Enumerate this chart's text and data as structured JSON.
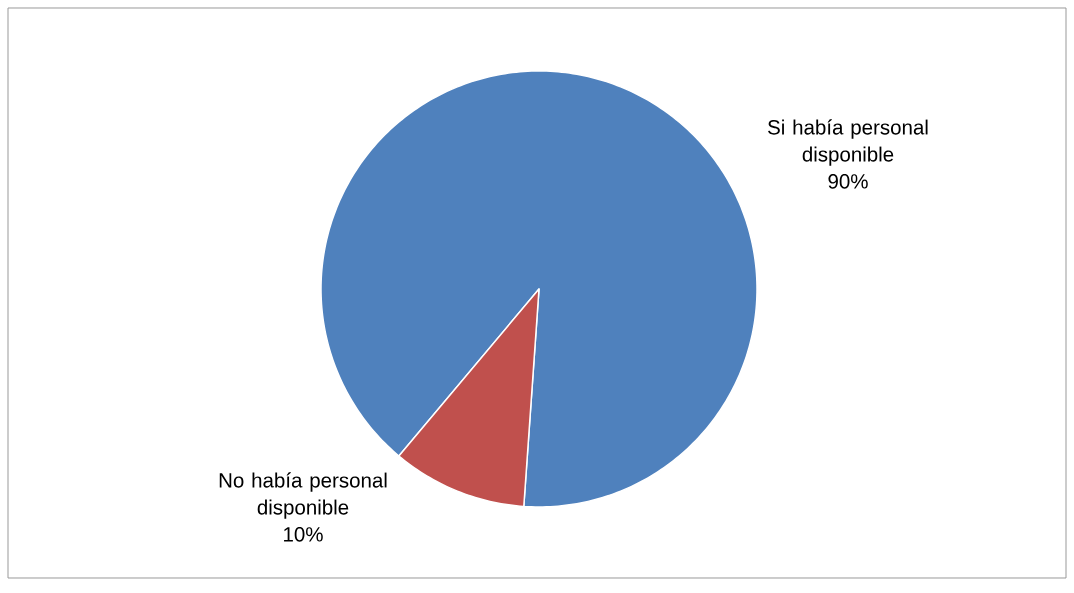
{
  "chart_data": {
    "type": "pie",
    "categories": [
      "Si había personal disponible",
      "No había personal disponible"
    ],
    "values": [
      90,
      10
    ],
    "value_labels": [
      "90%",
      "10%"
    ],
    "colors": [
      "#4f81bd",
      "#c0504d"
    ]
  }
}
